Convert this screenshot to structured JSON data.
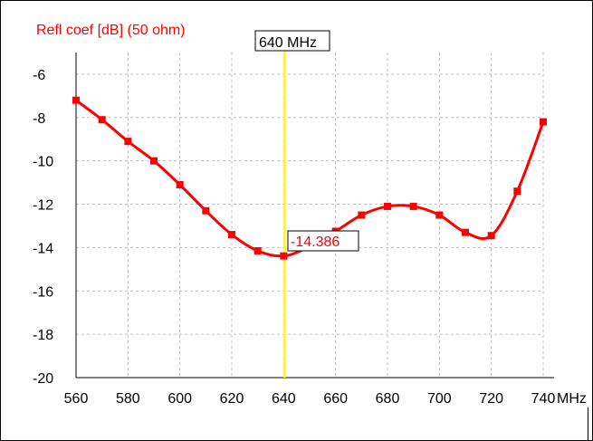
{
  "chart_data": {
    "type": "line",
    "title": "",
    "ylabel": "Refl coef [dB] (50 ohm)",
    "xunit": "MHz",
    "xlim": [
      560,
      740
    ],
    "ylim": [
      -20,
      -5
    ],
    "x_ticks": [
      560,
      580,
      600,
      620,
      640,
      660,
      680,
      700,
      720,
      740
    ],
    "x_tick_labels": [
      "560",
      "580",
      "600",
      "620",
      "640",
      "660",
      "680",
      "700",
      "720",
      "740"
    ],
    "y_ticks": [
      -6,
      -8,
      -10,
      -12,
      -14,
      -16,
      -18,
      -20
    ],
    "y_tick_labels": [
      "-6",
      "-8",
      "-10",
      "-12",
      "-14",
      "-16",
      "-18",
      "-20"
    ],
    "grid": true,
    "series": [
      {
        "color": "#ff0000",
        "x": [
          560,
          570,
          580,
          590,
          600,
          610,
          620,
          630,
          640,
          650,
          660,
          670,
          680,
          690,
          700,
          710,
          720,
          730,
          740
        ],
        "y": [
          -7.2,
          -8.1,
          -9.1,
          -10.0,
          -11.1,
          -12.3,
          -13.4,
          -14.15,
          -14.386,
          -13.95,
          -13.25,
          -12.5,
          -12.1,
          -12.1,
          -12.5,
          -13.3,
          -13.45,
          -11.4,
          -8.2
        ]
      }
    ],
    "cursor": {
      "x": 640,
      "x_label": "640 MHz",
      "value_label": "-14.386",
      "color": "#ffff00"
    },
    "colors": {
      "line": "#ff0000",
      "cursor": "#ffff00",
      "grid": "#c0c0c0",
      "axis_title": "#ff0000"
    }
  }
}
